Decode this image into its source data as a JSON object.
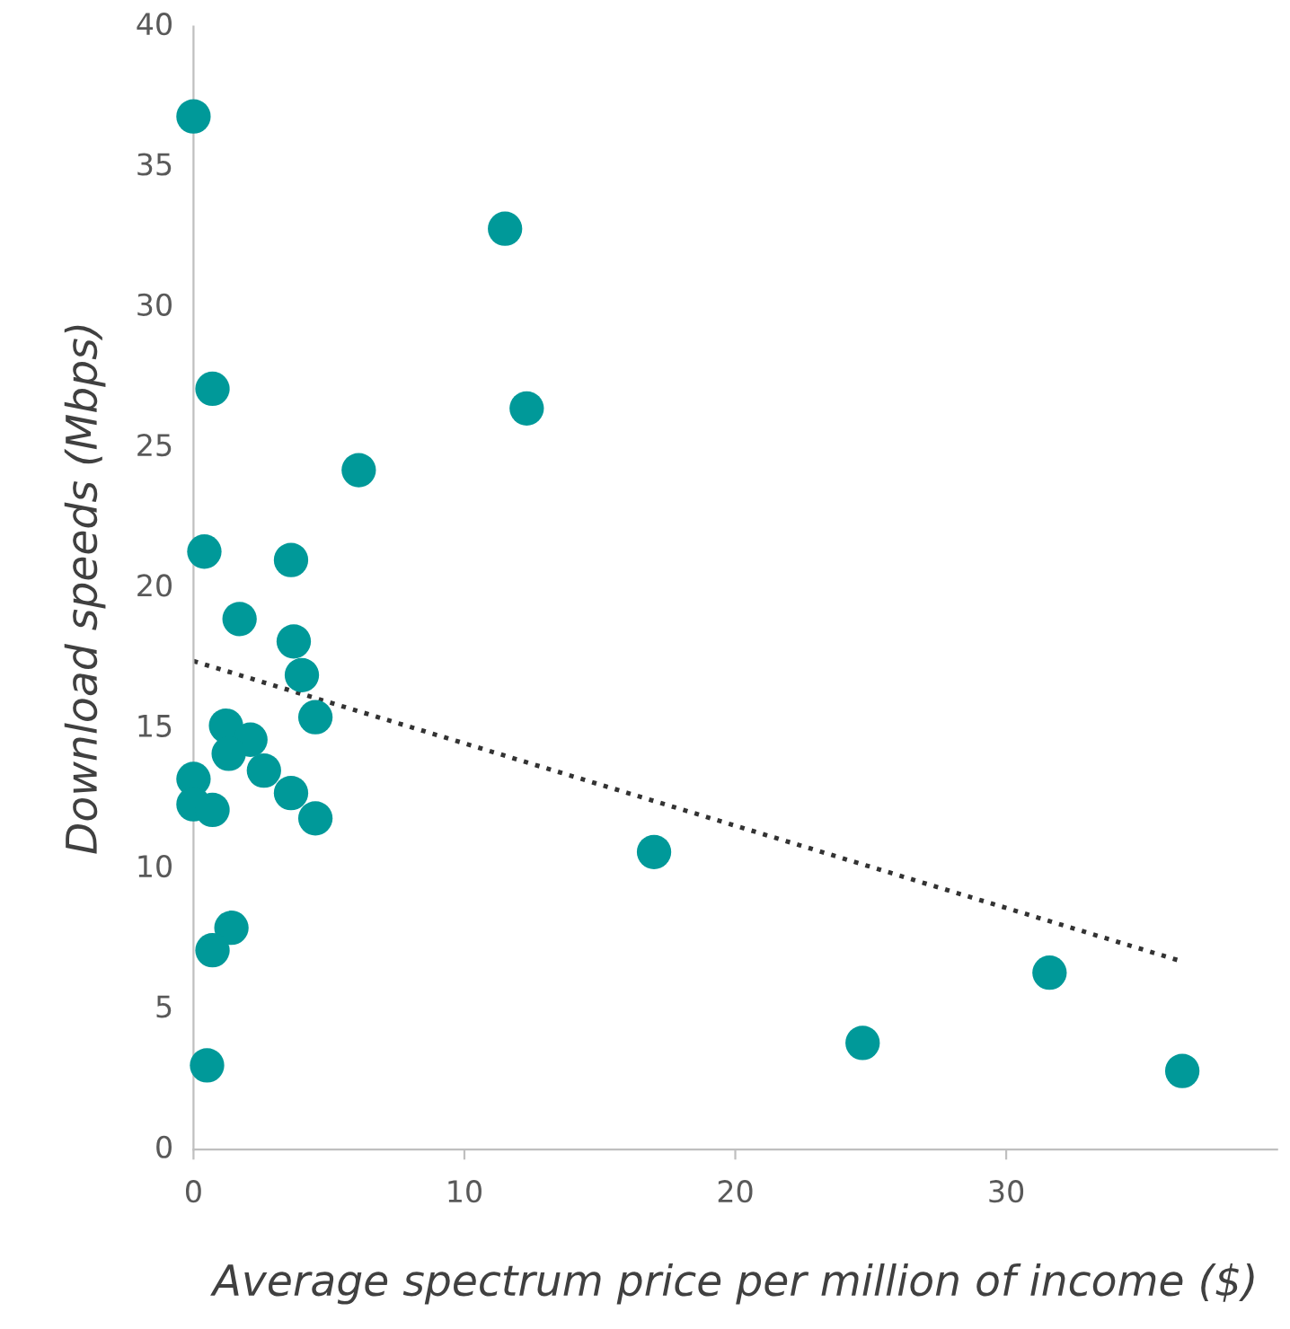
{
  "chart_data": {
    "type": "scatter",
    "xlabel": "Average spectrum price per million of income ($)",
    "ylabel": "Download speeds (Mbps)",
    "xlim": [
      0,
      40
    ],
    "xticks": [
      0,
      10,
      20,
      30
    ],
    "ylim": [
      0,
      40
    ],
    "yticks": [
      0,
      5,
      10,
      15,
      20,
      25,
      30,
      35,
      40
    ],
    "grid": false,
    "legend": false,
    "marker": "circle",
    "series": [
      {
        "color": "#009999",
        "x": [
          0,
          11.5,
          0.7,
          12.3,
          6.1,
          0.4,
          3.6,
          1.7,
          3.7,
          4.0,
          4.5,
          1.2,
          2.1,
          1.3,
          2.6,
          0,
          null,
          3.6,
          0,
          0.7,
          4.5,
          17.0,
          1.4,
          0.7,
          31.6,
          24.7,
          0.5,
          36.5
        ],
        "values": [
          36.8,
          32.8,
          27.1,
          26.4,
          24.2,
          21.3,
          21.0,
          18.9,
          18.1,
          16.9,
          15.4,
          15.1,
          14.6,
          14.1,
          13.5,
          13.2,
          null,
          12.7,
          12.3,
          12.1,
          11.8,
          10.6,
          7.9,
          7.1,
          6.3,
          3.8,
          3.0,
          2.8
        ]
      },
      {
        "type": "line",
        "color": "#333333",
        "line_style": "dotted",
        "marker": "none",
        "x": [
          0,
          36.5
        ],
        "values": [
          17.4,
          6.7
        ]
      }
    ]
  }
}
